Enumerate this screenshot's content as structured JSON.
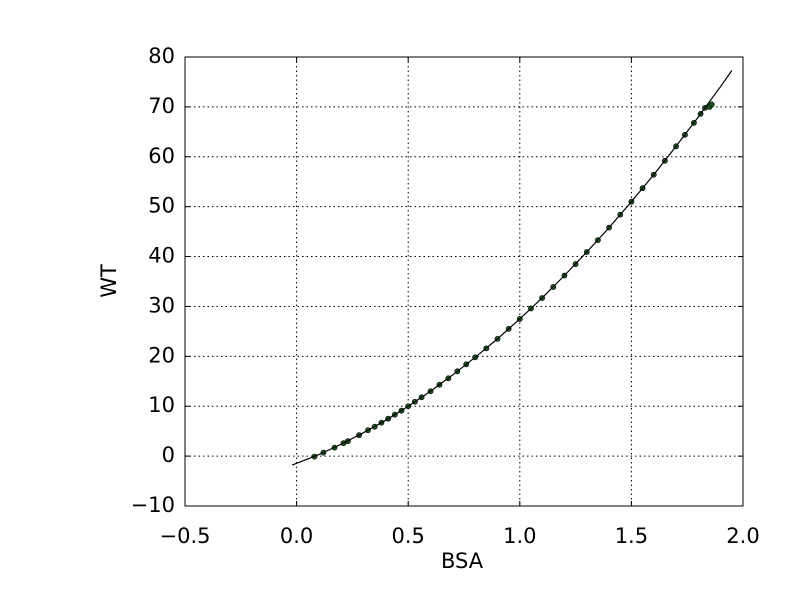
{
  "chart_data": {
    "type": "scatter",
    "xlabel": "BSA",
    "ylabel": "WT",
    "xlim": [
      -0.5,
      2.0
    ],
    "ylim": [
      -10,
      80
    ],
    "xticks": [
      {
        "value": -0.5,
        "label": "−0.5"
      },
      {
        "value": 0,
        "label": "0.0"
      },
      {
        "value": 0.5,
        "label": "0.5"
      },
      {
        "value": 1.0,
        "label": "1.0"
      },
      {
        "value": 1.5,
        "label": "1.5"
      },
      {
        "value": 2.0,
        "label": "2.0"
      }
    ],
    "yticks": [
      {
        "value": -10,
        "label": "−10"
      },
      0,
      10,
      20,
      30,
      40,
      50,
      60,
      70,
      80
    ],
    "grid": true,
    "color": "#1e5a1e",
    "x": [
      0.08,
      0.12,
      0.17,
      0.21,
      0.23,
      0.28,
      0.32,
      0.35,
      0.38,
      0.41,
      0.44,
      0.47,
      0.5,
      0.53,
      0.56,
      0.6,
      0.64,
      0.68,
      0.72,
      0.76,
      0.8,
      0.85,
      0.9,
      0.95,
      1.0,
      1.05,
      1.1,
      1.15,
      1.2,
      1.25,
      1.3,
      1.35,
      1.4,
      1.45,
      1.5,
      1.55,
      1.6,
      1.65,
      1.7,
      1.74,
      1.78,
      1.81,
      1.83,
      1.85,
      1.86
    ],
    "values": [
      -0.1,
      0.7,
      1.7,
      2.6,
      3.0,
      4.2,
      5.2,
      5.9,
      6.7,
      7.5,
      8.3,
      9.1,
      10,
      10.9,
      11.8,
      13.0,
      14.3,
      15.6,
      17.0,
      18.4,
      19.8,
      21.6,
      23.5,
      25.5,
      27.5,
      29.6,
      31.7,
      33.9,
      36.2,
      38.5,
      40.9,
      43.3,
      45.8,
      48.4,
      51,
      53.7,
      56.4,
      59.2,
      62.1,
      64.4,
      66.8,
      68.6,
      69.8,
      70,
      70.5
    ],
    "line": {
      "color": "#000000",
      "x": [
        -0.02,
        0.1,
        0.2,
        0.3,
        0.4,
        0.5,
        0.6,
        0.7,
        0.8,
        0.9,
        1.0,
        1.1,
        1.2,
        1.3,
        1.4,
        1.5,
        1.6,
        1.7,
        1.8,
        1.9,
        1.95
      ],
      "values": [
        -1.8,
        0.3,
        2.4,
        4.7,
        7.2,
        10,
        13.0,
        16.3,
        19.8,
        23.5,
        27.5,
        31.7,
        36.2,
        40.9,
        45.8,
        51,
        56.4,
        62.1,
        68.0,
        74.1,
        77.3
      ]
    }
  }
}
